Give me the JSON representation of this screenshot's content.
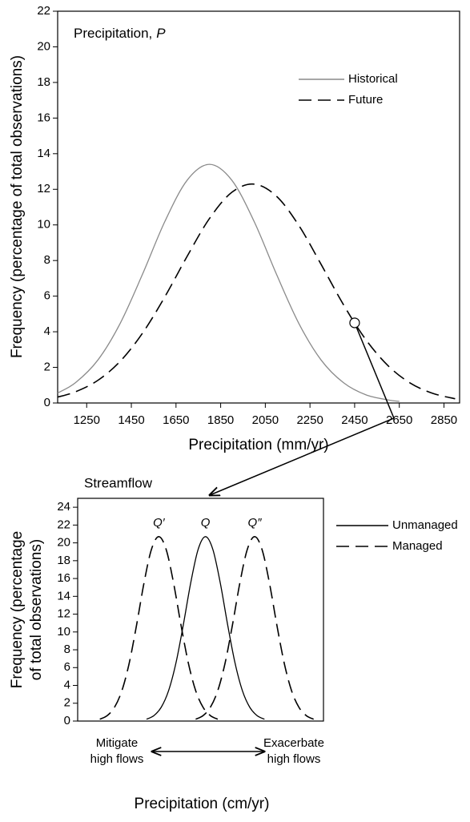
{
  "chart_data": [
    {
      "type": "line",
      "annotation": [
        "Precipitation,",
        "P"
      ],
      "xlabel": "Precipitation (mm/yr)",
      "ylabel": "Frequency (percentage of total observations)",
      "xlim": [
        1120,
        2920
      ],
      "ylim": [
        0,
        22
      ],
      "xticks": [
        1250,
        1450,
        1650,
        1850,
        2050,
        2250,
        2450,
        2650,
        2850
      ],
      "yticks": [
        0,
        2,
        4,
        6,
        8,
        10,
        12,
        14,
        16,
        18,
        20,
        22
      ],
      "legend": "upper right",
      "series": [
        {
          "name": "Historical",
          "color": "#8a8a8a",
          "dash": "solid",
          "x": [
            1120,
            1200,
            1300,
            1400,
            1500,
            1600,
            1700,
            1800,
            1900,
            2000,
            2100,
            2200,
            2300,
            2400,
            2500,
            2600,
            2650
          ],
          "values": [
            0.56,
            1.14,
            2.41,
            4.47,
            7.23,
            10.19,
            12.51,
            13.4,
            12.51,
            10.19,
            7.23,
            4.47,
            2.41,
            1.14,
            0.46,
            0.17,
            0.09
          ]
        },
        {
          "name": "Future",
          "color": "#000000",
          "dash": "dashed",
          "x": [
            1120,
            1200,
            1300,
            1400,
            1500,
            1600,
            1700,
            1800,
            1900,
            2000,
            2100,
            2200,
            2300,
            2400,
            2500,
            2600,
            2700,
            2800,
            2900
          ],
          "values": [
            0.33,
            0.63,
            1.27,
            2.34,
            3.92,
            5.96,
            8.24,
            10.36,
            11.83,
            12.29,
            11.61,
            9.97,
            7.78,
            5.52,
            3.56,
            2.09,
            1.11,
            0.54,
            0.24
          ]
        }
      ],
      "marker": {
        "x": 2450,
        "y": 4.5
      }
    },
    {
      "type": "line",
      "title": "Streamflow",
      "xlabel": "Precipitation (cm/yr)",
      "ylabel": [
        "Frequency (percentage",
        "of total observations)"
      ],
      "xlim": [
        0,
        10
      ],
      "ylim": [
        0,
        25
      ],
      "yticks": [
        0,
        2,
        4,
        6,
        8,
        10,
        12,
        14,
        16,
        18,
        20,
        22,
        24
      ],
      "legend": "outside right",
      "peak_labels": [
        "Q′",
        "Q",
        "Q″"
      ],
      "left_note": [
        "Mitigate",
        "high flows"
      ],
      "right_note": [
        "Exacerbate",
        "high flows"
      ],
      "series": [
        {
          "name": "Unmanaged",
          "color": "#000000",
          "dash": "solid",
          "x": [
            2.8,
            3.1,
            3.4,
            3.7,
            4.0,
            4.3,
            4.6,
            4.9,
            5.2,
            5.5,
            5.8,
            6.1,
            6.4,
            6.7,
            7.0,
            7.3,
            7.6
          ],
          "values": [
            0.21,
            0.61,
            1.55,
            3.42,
            6.54,
            10.83,
            15.52,
            19.26,
            20.7,
            19.26,
            15.52,
            10.83,
            6.54,
            3.42,
            1.55,
            0.61,
            0.21
          ]
        },
        {
          "name": "Managed",
          "color": "#000000",
          "dash": "dashed",
          "x": [
            0.9,
            1.2,
            1.5,
            1.8,
            2.1,
            2.4,
            2.7,
            3.0,
            3.3,
            3.6,
            3.9,
            4.2,
            4.5,
            4.8,
            5.1,
            5.4,
            5.7,
            null,
            4.8,
            5.1,
            5.4,
            5.7,
            6.0,
            6.3,
            6.6,
            6.9,
            7.2,
            7.5,
            7.8,
            8.1,
            8.4,
            8.7,
            9.0,
            9.3,
            9.6
          ],
          "values": [
            0.21,
            0.61,
            1.55,
            3.42,
            6.54,
            10.83,
            15.52,
            19.26,
            20.7,
            19.26,
            15.52,
            10.83,
            6.54,
            3.42,
            1.55,
            0.61,
            0.21,
            null,
            0.21,
            0.61,
            1.55,
            3.42,
            6.54,
            10.83,
            15.52,
            19.26,
            20.7,
            19.26,
            15.52,
            10.83,
            6.54,
            3.42,
            1.55,
            0.61,
            0.21
          ]
        }
      ]
    }
  ]
}
